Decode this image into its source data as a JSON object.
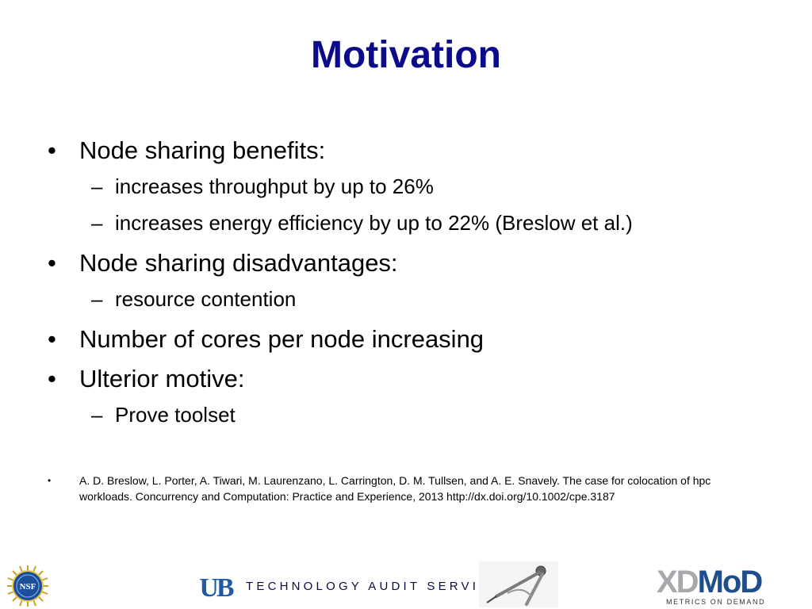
{
  "slide": {
    "title": "Motivation",
    "bullets": [
      {
        "text": "Node sharing benefits:",
        "sub": [
          "increases throughput by up to 26%",
          "increases energy efficiency by up to 22% (Breslow et al.)"
        ]
      },
      {
        "text": "Node sharing disadvantages:",
        "sub": [
          "resource contention"
        ]
      },
      {
        "text": "Number of cores per node increasing",
        "sub": []
      },
      {
        "text": "Ulterior motive:",
        "sub": [
          "Prove toolset"
        ]
      }
    ],
    "bullet_marker": "•",
    "sub_marker": "–",
    "references": [
      "A. D. Breslow, L. Porter, A. Tiwari, M. Laurenzano, L. Carrington, D. M. Tullsen, and A. E. Snavely. The case for colocation of hpc workloads. Concurrency and Computation: Practice and Experience, 2013 http://dx.doi.org/10.1002/cpe.3187"
    ]
  },
  "footer": {
    "nsf_logo_text": "NSF",
    "ub_logo_text": "UB",
    "label": "TECHNOLOGY AUDIT SERVICE",
    "xdmod": {
      "xd": "XD",
      "mod": "MoD",
      "tagline": "METRICS ON DEMAND"
    }
  },
  "colors": {
    "title": "#0b0b8c",
    "footer_text": "#0b0b40",
    "ub_blue": "#1f5aa8",
    "xdmod_blue": "#1e4e8c",
    "xdmod_gray": "#a7a9ac"
  }
}
